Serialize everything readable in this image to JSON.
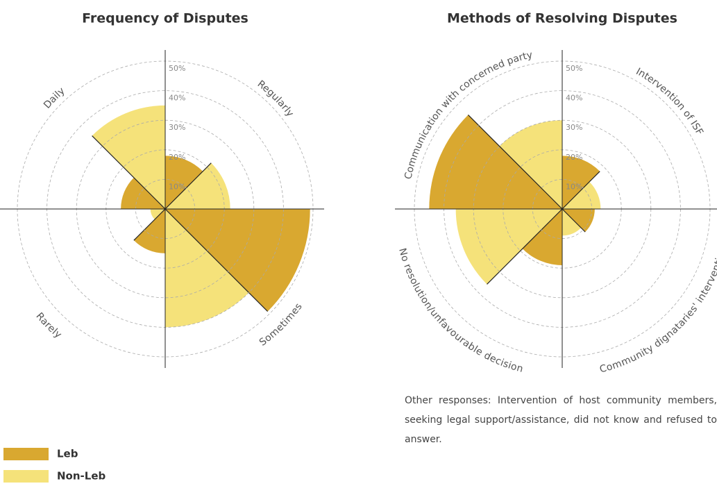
{
  "chart_data": [
    {
      "type": "polar_area",
      "title": "Frequency of Disputes",
      "categories": [
        "Regularly",
        "Sometimes",
        "Rarely",
        "Daily"
      ],
      "series": [
        {
          "name": "Leb",
          "color": "#d9a830",
          "values": [
            18,
            49,
            15,
            15
          ]
        },
        {
          "name": "Non-Leb",
          "color": "#f5e27a",
          "values": [
            22,
            40,
            5,
            35
          ]
        }
      ],
      "rlim": [
        0,
        50
      ],
      "rticks": [
        {
          "value": 10,
          "label": "10%"
        },
        {
          "value": 20,
          "label": "20%"
        },
        {
          "value": 30,
          "label": "30%"
        },
        {
          "value": 40,
          "label": "40%"
        },
        {
          "value": 50,
          "label": "50%"
        }
      ],
      "grid": true
    },
    {
      "type": "polar_area",
      "title": "Methods of Resolving Disputes",
      "categories": [
        "Intervention of ISF",
        "Community dignataries' intervention",
        "No resolution/unfavourable decision",
        "Communication with concerned party"
      ],
      "series": [
        {
          "name": "Leb",
          "color": "#d9a830",
          "values": [
            18,
            11,
            19,
            45
          ]
        },
        {
          "name": "Non-Leb",
          "color": "#f5e27a",
          "values": [
            13,
            9,
            36,
            30
          ]
        }
      ],
      "rlim": [
        0,
        50
      ],
      "rticks": [
        {
          "value": 10,
          "label": "10%"
        },
        {
          "value": 20,
          "label": "20%"
        },
        {
          "value": 30,
          "label": "30%"
        },
        {
          "value": 40,
          "label": "40%"
        },
        {
          "value": 50,
          "label": "50%"
        }
      ],
      "grid": true,
      "annotation": "Other responses: Intervention of host community members, seeking legal support/assistance, did not know and refused to answer."
    }
  ]
}
